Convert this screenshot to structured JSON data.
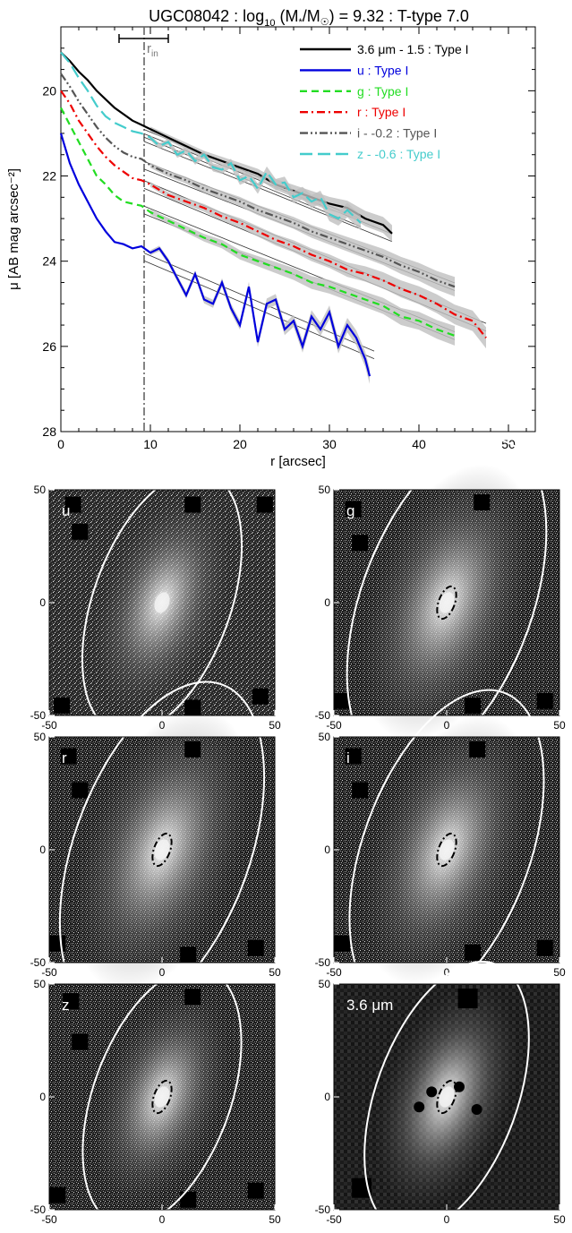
{
  "figure": {
    "title": "UGC08042 : log10 (M*/M☉) = 9.32 : T-type 7.0",
    "title_parts": {
      "name": "UGC08042 : log",
      "sub": "10",
      "mid": " (M",
      "star": "*",
      "slash": "/M",
      "sun": "☉",
      "rest": ") = 9.32 : T-type 7.0"
    }
  },
  "chart_data": [
    {
      "type": "line",
      "panel": "profile",
      "xlabel": "r [arcsec]",
      "ylabel": "μ [AB mag arcsec⁻²]",
      "xlim": [
        0,
        53
      ],
      "ylim": [
        28,
        18.5
      ],
      "y_inverted": true,
      "xticks": [
        0,
        10,
        20,
        30,
        40,
        50
      ],
      "yticks": [
        20,
        22,
        24,
        26,
        28
      ],
      "rin_label": "r",
      "rin_sub": "in",
      "rin": 9.3,
      "rin_error": [
        6.5,
        12.0
      ],
      "series": [
        {
          "name": "3.6 μm - 1.5 : Type I",
          "color": "#000000",
          "dash": "solid",
          "fit": {
            "x0": 9.3,
            "y0": 21.1,
            "x1": 37,
            "y1": 23.45
          },
          "x": [
            0,
            1,
            2,
            3,
            4,
            5,
            6,
            7,
            8,
            9,
            10,
            12,
            14,
            16,
            18,
            20,
            22,
            24,
            26,
            28,
            30,
            32,
            34,
            36,
            37
          ],
          "y": [
            19.1,
            19.3,
            19.55,
            19.75,
            20.0,
            20.2,
            20.4,
            20.55,
            20.7,
            20.8,
            20.9,
            21.1,
            21.3,
            21.5,
            21.65,
            21.8,
            21.95,
            22.2,
            22.35,
            22.5,
            22.65,
            22.75,
            23.0,
            23.15,
            23.35
          ]
        },
        {
          "name": "u : Type I",
          "color": "#0000dd",
          "dash": "solid",
          "fit": {
            "x0": 9.3,
            "y0": 23.9,
            "x1": 35,
            "y1": 26.2
          },
          "x": [
            0,
            1,
            2,
            3,
            4,
            5,
            6,
            7,
            8,
            9,
            10,
            11,
            12,
            13,
            14,
            15,
            16,
            17,
            18,
            19,
            20,
            21,
            22,
            23,
            24,
            25,
            26,
            27,
            28,
            29,
            30,
            31,
            32,
            33,
            34,
            34.5
          ],
          "y": [
            21.0,
            21.7,
            22.2,
            22.6,
            23.0,
            23.3,
            23.55,
            23.6,
            23.7,
            23.65,
            23.8,
            23.7,
            24.0,
            24.4,
            24.8,
            24.3,
            24.9,
            25.0,
            24.5,
            25.1,
            25.5,
            24.6,
            25.9,
            25.0,
            24.9,
            25.6,
            25.4,
            26.0,
            25.3,
            25.6,
            25.2,
            26.0,
            25.5,
            25.8,
            26.3,
            26.7
          ]
        },
        {
          "name": "g : Type I",
          "color": "#22dd22",
          "dash": "dashed",
          "fit": {
            "x0": 9.3,
            "y0": 22.8,
            "x1": 44,
            "y1": 25.75
          },
          "x": [
            0,
            1,
            2,
            3,
            4,
            5,
            6,
            7,
            8,
            9,
            10,
            12,
            14,
            16,
            18,
            20,
            22,
            24,
            26,
            28,
            30,
            32,
            34,
            36,
            38,
            40,
            42,
            44
          ],
          "y": [
            20.4,
            20.8,
            21.2,
            21.6,
            22.0,
            22.2,
            22.45,
            22.6,
            22.65,
            22.7,
            22.85,
            23.05,
            23.25,
            23.45,
            23.6,
            23.85,
            24.0,
            24.15,
            24.3,
            24.5,
            24.6,
            24.75,
            24.9,
            25.05,
            25.3,
            25.4,
            25.6,
            25.75
          ]
        },
        {
          "name": "r : Type I",
          "color": "#ee0000",
          "dash": "dashdot",
          "fit": {
            "x0": 9.3,
            "y0": 22.2,
            "x1": 47.5,
            "y1": 25.55
          },
          "x": [
            0,
            1,
            2,
            3,
            4,
            5,
            6,
            7,
            8,
            9,
            10,
            12,
            14,
            16,
            18,
            20,
            22,
            24,
            26,
            28,
            30,
            32,
            34,
            36,
            38,
            40,
            42,
            44,
            46,
            47.5
          ],
          "y": [
            20.0,
            20.3,
            20.7,
            21.0,
            21.3,
            21.55,
            21.75,
            21.9,
            22.05,
            22.1,
            22.2,
            22.45,
            22.6,
            22.75,
            22.95,
            23.1,
            23.3,
            23.5,
            23.65,
            23.85,
            24.0,
            24.2,
            24.3,
            24.45,
            24.65,
            24.8,
            25.0,
            25.25,
            25.4,
            25.8
          ]
        },
        {
          "name": "i - -0.2 : Type I",
          "color": "#555555",
          "dash": "dashdotdot",
          "fit": {
            "x0": 9.3,
            "y0": 21.75,
            "x1": 44,
            "y1": 24.6
          },
          "x": [
            0,
            1,
            2,
            3,
            4,
            5,
            6,
            7,
            8,
            9,
            10,
            12,
            14,
            16,
            18,
            20,
            22,
            24,
            26,
            28,
            30,
            32,
            34,
            36,
            38,
            40,
            42,
            44
          ],
          "y": [
            19.6,
            19.9,
            20.25,
            20.55,
            20.85,
            21.1,
            21.3,
            21.45,
            21.55,
            21.6,
            21.75,
            21.95,
            22.1,
            22.3,
            22.45,
            22.6,
            22.8,
            22.95,
            23.1,
            23.3,
            23.45,
            23.6,
            23.75,
            23.9,
            24.1,
            24.25,
            24.45,
            24.6
          ]
        },
        {
          "name": "z - -0.6 : Type I",
          "color": "#44cccc",
          "dash": "longdash",
          "fit": {
            "x0": 9.3,
            "y0": 21.0,
            "x1": 33.5,
            "y1": 23.1
          },
          "x": [
            0,
            1,
            2,
            3,
            4,
            5,
            6,
            7,
            8,
            9,
            10,
            11,
            12,
            13,
            14,
            15,
            16,
            17,
            18,
            19,
            20,
            21,
            22,
            23,
            24,
            25,
            26,
            27,
            28,
            29,
            30,
            31,
            32,
            33.5
          ],
          "y": [
            19.1,
            19.35,
            19.7,
            20.0,
            20.35,
            20.6,
            20.75,
            20.85,
            20.95,
            21.0,
            21.1,
            21.3,
            21.2,
            21.5,
            21.4,
            21.65,
            21.5,
            21.8,
            21.85,
            21.7,
            22.1,
            22.0,
            22.3,
            21.9,
            22.2,
            22.15,
            22.5,
            22.4,
            22.6,
            22.5,
            22.9,
            23.0,
            22.8,
            23.1
          ]
        }
      ]
    },
    {
      "type": "heatmap",
      "panel": "images",
      "xlim": [
        -50,
        50
      ],
      "ylim": [
        -50,
        50
      ],
      "xticks": [
        -50,
        0,
        50
      ],
      "yticks": [
        -50,
        0,
        50
      ],
      "panels": [
        {
          "label": "u",
          "outer": {
            "rx": 32,
            "ry": 64,
            "rot": 20,
            "cx": 0,
            "cy": 0
          },
          "inner": false
        },
        {
          "label": "g",
          "outer": {
            "rx": 40,
            "ry": 80,
            "rot": 20,
            "cx": 0,
            "cy": 0
          },
          "inner": true
        },
        {
          "label": "r",
          "outer": {
            "rx": 41,
            "ry": 82,
            "rot": 20,
            "cx": 0,
            "cy": 0
          },
          "inner": true
        },
        {
          "label": "i",
          "outer": {
            "rx": 39,
            "ry": 78,
            "rot": 20,
            "cx": 0,
            "cy": 0
          },
          "inner": true
        },
        {
          "label": "z",
          "outer": {
            "rx": 32,
            "ry": 63,
            "rot": 20,
            "cx": 0,
            "cy": 0
          },
          "inner": true
        },
        {
          "label": "3.6 μm",
          "outer": {
            "rx": 33,
            "ry": 66,
            "rot": 20,
            "cx": 0,
            "cy": 0
          },
          "inner": true
        }
      ]
    }
  ]
}
